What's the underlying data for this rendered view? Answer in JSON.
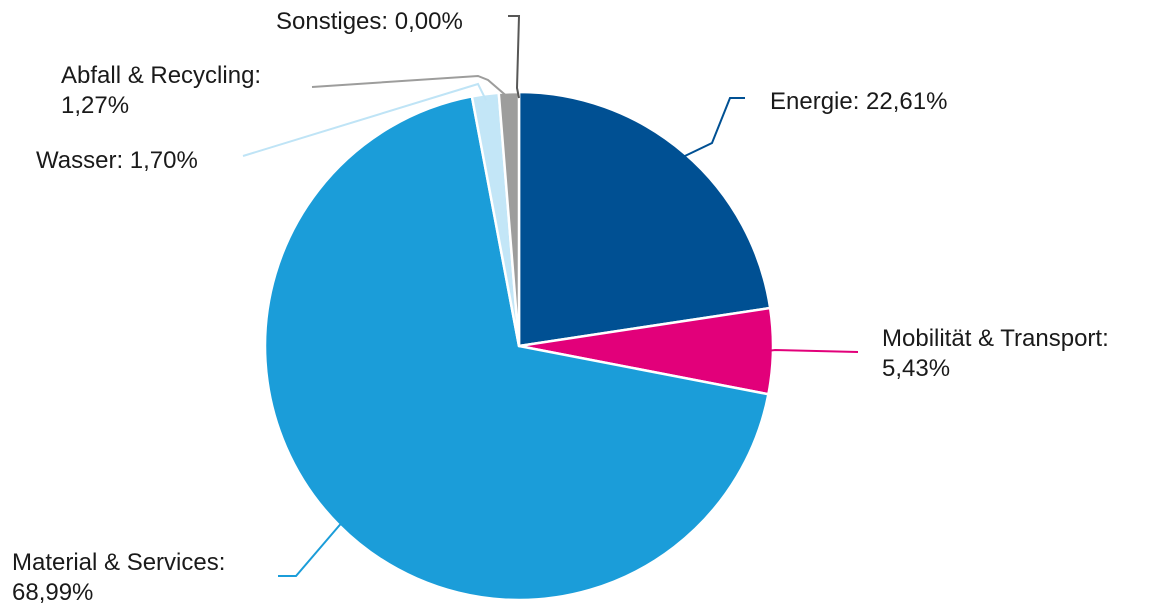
{
  "chart_data": {
    "type": "pie",
    "start_angle_deg": 0,
    "direction": "clockwise",
    "legend": "none",
    "slices": [
      {
        "label": "Energie",
        "value": 22.61,
        "value_text": "22,61%",
        "color": "#005093"
      },
      {
        "label": "Mobilität & Transport",
        "value": 5.43,
        "value_text": "5,43%",
        "color": "#E2007A"
      },
      {
        "label": "Material & Services",
        "value": 68.99,
        "value_text": "68,99%",
        "color": "#1B9DD9"
      },
      {
        "label": "Wasser",
        "value": 1.7,
        "value_text": "1,70%",
        "color": "#C3E6F7"
      },
      {
        "label": "Abfall & Recycling",
        "value": 1.27,
        "value_text": "1,27%",
        "color": "#9D9D9C"
      },
      {
        "label": "Sonstiges",
        "value": 0.0,
        "value_text": "0,00%",
        "color": "#575756"
      }
    ]
  }
}
